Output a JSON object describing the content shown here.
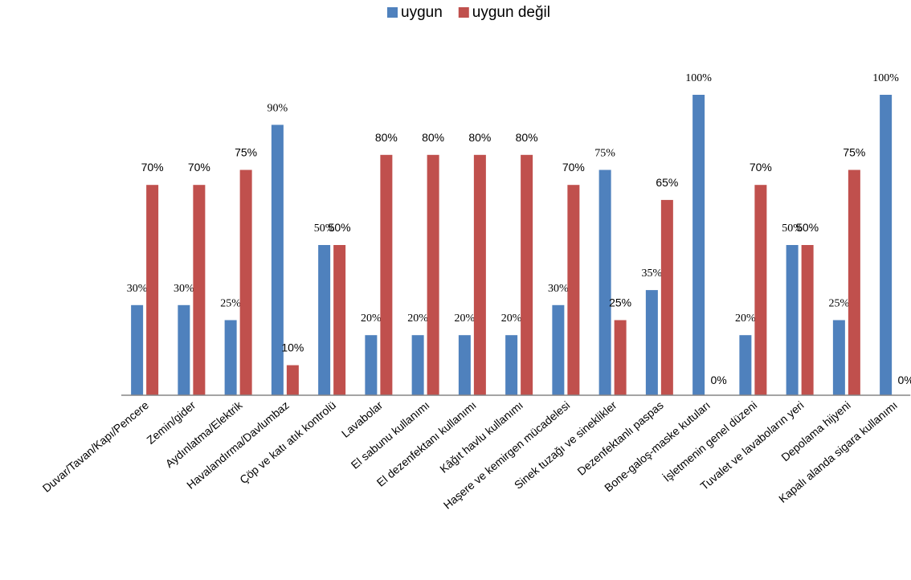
{
  "chart_data": {
    "type": "bar",
    "categories": [
      "Duvar/Tavan/Kapı/Pencere",
      "Zemin/gider",
      "Aydınlatma/Elektrik",
      "Havalandırma/Davlumbaz",
      "Çöp ve katı atık kontrolü",
      "Lavabolar",
      "El sabunu kullanımı",
      "El dezenfektanı kullanımı",
      "Kâğıt havlu kullanımı",
      "Haşere ve kemirgen mücadelesi",
      "Sinek tuzağı ve sineklikler",
      "Dezenfektanlı paspas",
      "Bone-galoş-maske kutuları",
      "İşletmenin genel düzeni",
      "Tuvalet ve lavaboların yeri",
      "Depolama hijyeni",
      "Kapalı alanda sigara kullanımı"
    ],
    "series": [
      {
        "name": "uygun",
        "color": "#4f81bd",
        "values": [
          30,
          30,
          25,
          90,
          50,
          20,
          20,
          20,
          20,
          30,
          75,
          35,
          100,
          20,
          50,
          25,
          100
        ],
        "value_labels": [
          "30%",
          "30%",
          "25%",
          "90%",
          "50%",
          "20%",
          "20%",
          "20%",
          "20%",
          "30%",
          "75%",
          "35%",
          "100%",
          "20%",
          "50%",
          "25%",
          "100%"
        ]
      },
      {
        "name": "uygun değil",
        "color": "#c0504d",
        "values": [
          70,
          70,
          75,
          10,
          50,
          80,
          80,
          80,
          80,
          70,
          25,
          65,
          0,
          70,
          50,
          75,
          0
        ],
        "value_labels": [
          "70%",
          "70%",
          "75%",
          "10%",
          "50%",
          "80%",
          "80%",
          "80%",
          "80%",
          "70%",
          "25%",
          "65%",
          "0%",
          "70%",
          "50%",
          "75%",
          "0%"
        ]
      }
    ],
    "legend": "top"
  }
}
